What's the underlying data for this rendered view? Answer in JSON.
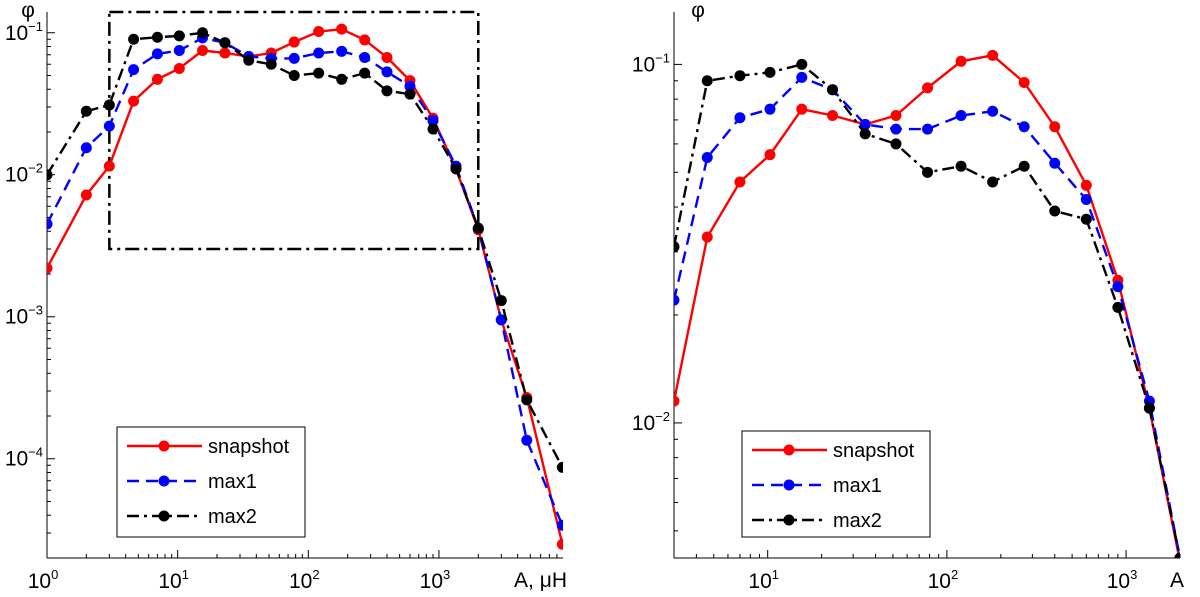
{
  "chart_data": [
    {
      "type": "line",
      "xscale": "log",
      "yscale": "log",
      "xlim": [
        1,
        8900
      ],
      "ylim": [
        2e-05,
        0.14
      ],
      "xlabel": "A, μH",
      "ylabel": "φ",
      "grid": false,
      "legend_position": "bottom-left",
      "x_ticks": [
        {
          "base": "10",
          "exp": "0",
          "value": 1
        },
        {
          "base": "10",
          "exp": "1",
          "value": 10
        },
        {
          "base": "10",
          "exp": "2",
          "value": 100
        },
        {
          "base": "10",
          "exp": "3",
          "value": 1000
        }
      ],
      "y_ticks": [
        {
          "base": "10",
          "exp": "−4",
          "value": 0.0001
        },
        {
          "base": "10",
          "exp": "−3",
          "value": 0.001
        },
        {
          "base": "10",
          "exp": "−2",
          "value": 0.01
        },
        {
          "base": "10",
          "exp": "−1",
          "value": 0.1
        }
      ],
      "zoom_box": {
        "x": [
          3,
          2000
        ],
        "y": [
          0.003,
          0.14
        ]
      },
      "series": [
        {
          "name": "snapshot",
          "color": "#ff0000",
          "style": "solid",
          "x": [
            1,
            2,
            3,
            4.6,
            7,
            10.3,
            15.5,
            23,
            35,
            52,
            78,
            120,
            180,
            270,
            400,
            600,
            900,
            1350,
            2000,
            3000,
            4700,
            8800
          ],
          "y": [
            0.0022,
            0.0072,
            0.0115,
            0.033,
            0.047,
            0.056,
            0.075,
            0.072,
            0.068,
            0.072,
            0.086,
            0.102,
            0.106,
            0.089,
            0.067,
            0.046,
            0.025,
            0.011,
            0.0041,
            0.00095,
            0.00027,
            2.5e-05
          ]
        },
        {
          "name": "max1",
          "color": "#0000ff",
          "style": "dashed",
          "x": [
            1,
            2,
            3,
            4.6,
            7,
            10.3,
            15.5,
            23,
            35,
            52,
            78,
            120,
            180,
            270,
            400,
            600,
            900,
            1350,
            2000,
            3000,
            4700,
            8800
          ],
          "y": [
            0.0045,
            0.0155,
            0.022,
            0.055,
            0.071,
            0.075,
            0.092,
            0.085,
            0.068,
            0.066,
            0.066,
            0.072,
            0.074,
            0.067,
            0.053,
            0.042,
            0.024,
            0.0115,
            0.0042,
            0.00095,
            0.000135,
            3.4e-05
          ]
        },
        {
          "name": "max2",
          "color": "#000000",
          "style": "dashdot",
          "x": [
            1,
            2,
            3,
            4.6,
            7,
            10.3,
            15.5,
            23,
            35,
            52,
            78,
            120,
            180,
            270,
            400,
            600,
            900,
            1350,
            2000,
            3000,
            4700,
            8800
          ],
          "y": [
            0.01,
            0.028,
            0.031,
            0.09,
            0.093,
            0.095,
            0.1,
            0.085,
            0.064,
            0.06,
            0.05,
            0.052,
            0.047,
            0.052,
            0.039,
            0.037,
            0.021,
            0.011,
            0.0042,
            0.0013,
            0.00026,
            8.7e-05
          ]
        }
      ]
    },
    {
      "type": "line",
      "xscale": "log",
      "yscale": "log",
      "xlim": [
        3,
        2000
      ],
      "ylim": [
        0.0042,
        0.14
      ],
      "xlabel": "A",
      "ylabel": "φ",
      "grid": false,
      "legend_position": "bottom-left",
      "x_ticks": [
        {
          "base": "10",
          "exp": "1",
          "value": 10
        },
        {
          "base": "10",
          "exp": "2",
          "value": 100
        },
        {
          "base": "10",
          "exp": "3",
          "value": 1000
        }
      ],
      "y_ticks": [
        {
          "base": "10",
          "exp": "−2",
          "value": 0.01
        },
        {
          "base": "10",
          "exp": "−1",
          "value": 0.1
        }
      ],
      "series": [
        {
          "name": "snapshot",
          "color": "#ff0000",
          "style": "solid",
          "x": [
            3,
            4.6,
            7,
            10.3,
            15.5,
            23,
            35,
            52,
            78,
            120,
            180,
            270,
            400,
            600,
            900,
            1350,
            2000
          ],
          "y": [
            0.0115,
            0.033,
            0.047,
            0.056,
            0.075,
            0.072,
            0.068,
            0.072,
            0.086,
            0.102,
            0.106,
            0.089,
            0.067,
            0.046,
            0.025,
            0.011,
            0.0041
          ]
        },
        {
          "name": "max1",
          "color": "#0000ff",
          "style": "dashed",
          "x": [
            3,
            4.6,
            7,
            10.3,
            15.5,
            23,
            35,
            52,
            78,
            120,
            180,
            270,
            400,
            600,
            900,
            1350,
            2000
          ],
          "y": [
            0.022,
            0.055,
            0.071,
            0.075,
            0.092,
            0.085,
            0.068,
            0.066,
            0.066,
            0.072,
            0.074,
            0.067,
            0.053,
            0.042,
            0.024,
            0.0115,
            0.0042
          ]
        },
        {
          "name": "max2",
          "color": "#000000",
          "style": "dashdot",
          "x": [
            3,
            4.6,
            7,
            10.3,
            15.5,
            23,
            35,
            52,
            78,
            120,
            180,
            270,
            400,
            600,
            900,
            1350,
            2000
          ],
          "y": [
            0.031,
            0.09,
            0.093,
            0.095,
            0.1,
            0.085,
            0.064,
            0.06,
            0.05,
            0.052,
            0.047,
            0.052,
            0.039,
            0.037,
            0.021,
            0.011,
            0.0042
          ]
        }
      ]
    }
  ]
}
